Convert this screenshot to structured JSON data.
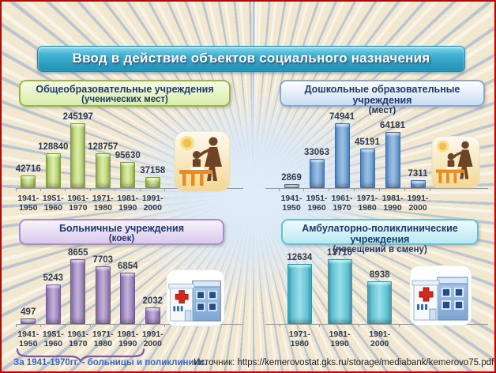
{
  "page": {
    "title": "Ввод в действие объектов социального назначения",
    "footnote": "За 1941-1970гг. - больницы и поликлиники.",
    "source": "Источник: https://kemerovostat.gks.ru/storage/mediabank/kemerovo75.pdf",
    "border_color": "#c00000",
    "banner_color": "#2d9cc0"
  },
  "chart_data": [
    {
      "type": "bar",
      "title": "Общеобразовательные учреждения",
      "subtitle": "(ученических мест)",
      "categories": [
        "1941-1950",
        "1951-1960",
        "1961-1970",
        "1971-1980",
        "1981-1990",
        "1991-2000"
      ],
      "values": [
        42716,
        128840,
        245197,
        128757,
        95630,
        37158
      ],
      "ylim": [
        0,
        250000
      ],
      "legend": "none",
      "grid": false,
      "icon": "teacher-with-child-icon",
      "colors": {
        "bar_edge": "#7d9b3c",
        "bar_mid": "#b5d06e",
        "bar_lite": "#dcedaa",
        "header_bg_top": "#f6fce4",
        "header_bg_bottom": "#d9edaa",
        "header_border": "#9ab54e"
      }
    },
    {
      "type": "bar",
      "title": "Дошкольные образовательные учреждения",
      "subtitle": "(мест)",
      "categories": [
        "1941-1950",
        "1951-1960",
        "1961-1970",
        "1971-1980",
        "1981-1990",
        "1991-2000"
      ],
      "values": [
        2869,
        33063,
        74941,
        45191,
        64181,
        7311
      ],
      "ylim": [
        0,
        80000
      ],
      "legend": "none",
      "grid": false,
      "icon": "teacher-with-child-icon",
      "colors": {
        "bar_edge": "#3a6ba8",
        "bar_mid": "#6f9ecf",
        "bar_lite": "#9cc0e4",
        "header_bg_top": "#ffffff",
        "header_bg_bottom": "#c9dcf2",
        "header_border": "#8aa8cc"
      }
    },
    {
      "type": "bar",
      "title": "Больничные учреждения",
      "subtitle": "(коек)",
      "categories": [
        "1941-1950",
        "1951-1960",
        "1961-1970",
        "1971-1980",
        "1981-1990",
        "1991-2000"
      ],
      "values": [
        497,
        5243,
        8655,
        7703,
        6854,
        2032
      ],
      "ylim": [
        0,
        9000
      ],
      "legend": "none",
      "grid": false,
      "icon": "hospital-building-icon",
      "brace_under": "1941-1970",
      "colors": {
        "bar_edge": "#6f5596",
        "bar_mid": "#9c85bb",
        "bar_lite": "#c3b2d9",
        "header_bg_top": "#f8f3fc",
        "header_bg_bottom": "#d9c9ec",
        "header_border": "#a98fc9"
      }
    },
    {
      "type": "bar",
      "title": "Амбулаторно-поликлинические учреждения",
      "subtitle": "(посещений в смену)",
      "categories": [
        "1971-1980",
        "1981-1990",
        "1991-2000"
      ],
      "values": [
        12634,
        13710,
        8938
      ],
      "ylim": [
        0,
        14000
      ],
      "legend": "none",
      "grid": false,
      "icon": "hospital-building-icon",
      "colors": {
        "bar_edge": "#2f97ad",
        "bar_mid": "#5cc0d2",
        "bar_lite": "#9adfe9",
        "header_bg_top": "#f0fbfd",
        "header_bg_bottom": "#b8e8f2",
        "header_border": "#62c2d8"
      }
    }
  ]
}
